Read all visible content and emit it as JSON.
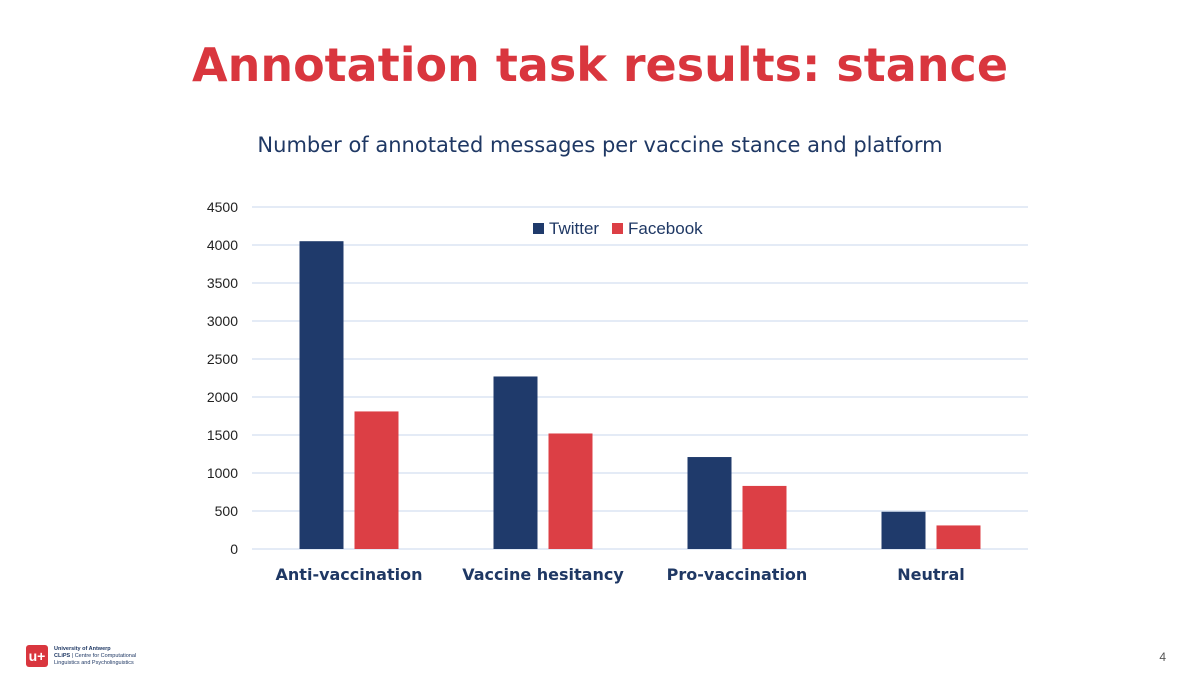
{
  "slide": {
    "title": "Annotation task results: stance",
    "page_number": "4"
  },
  "logo": {
    "university": "University of Antwerp",
    "clips": "CLiPS",
    "centre_line1": "Centre for Computational",
    "centre_line2": "Linguistics and Psycholinguistics"
  },
  "colors": {
    "title": "#d9363e",
    "twitter": "#1f3a6b",
    "facebook": "#dc3f45",
    "gridline": "#c9d7ec",
    "axis_text": "#222222"
  },
  "chart_data": {
    "type": "bar",
    "title": "Number of annotated messages per vaccine stance and platform",
    "categories": [
      "Anti-vaccination",
      "Vaccine hesitancy",
      "Pro-vaccination",
      "Neutral"
    ],
    "series": [
      {
        "name": "Twitter",
        "values": [
          4050,
          2270,
          1210,
          490
        ]
      },
      {
        "name": "Facebook",
        "values": [
          1810,
          1520,
          830,
          310
        ]
      }
    ],
    "ylim": [
      0,
      4500
    ],
    "yticks": [
      0,
      500,
      1000,
      1500,
      2000,
      2500,
      3000,
      3500,
      4000,
      4500
    ],
    "grid": true,
    "legend_position": "top-center",
    "xlabel": "",
    "ylabel": ""
  }
}
